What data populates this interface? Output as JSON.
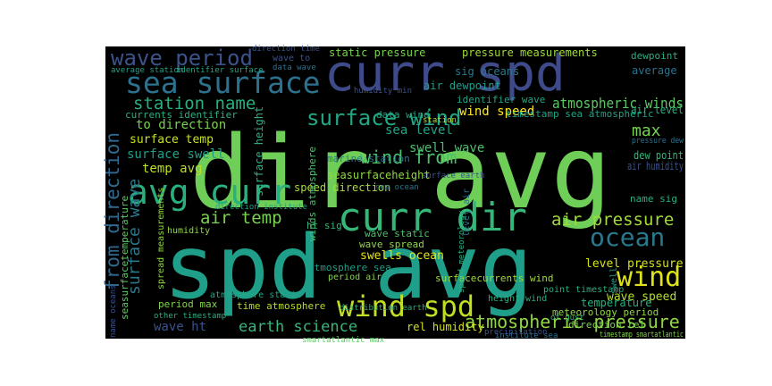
{
  "cloud": {
    "background": "#000000",
    "page_background": "#ffffff",
    "words": [
      {
        "text": "dir avg",
        "color": "#6ece58"
      },
      {
        "text": "spd avg",
        "color": "#1f9e89"
      },
      {
        "text": "curr spd",
        "color": "#3e4a89"
      },
      {
        "text": "curr dir",
        "color": "#35b779"
      },
      {
        "text": "avg curr",
        "color": "#2ab07f"
      },
      {
        "text": "sea surface",
        "color": "#2c728e"
      },
      {
        "text": "wind spd",
        "color": "#c2df23"
      },
      {
        "text": "wave period",
        "color": "#3b528b"
      },
      {
        "text": "wind",
        "color": "#dde318"
      },
      {
        "text": "ocean",
        "color": "#2a788e"
      },
      {
        "text": "air pressure",
        "color": "#a0da39"
      },
      {
        "text": "atmospheric pressure",
        "color": "#90d743"
      },
      {
        "text": "wind from",
        "color": "#4ac16d"
      },
      {
        "text": "surface wind",
        "color": "#22a785"
      },
      {
        "text": "station name",
        "color": "#2ab07f"
      },
      {
        "text": "air temp",
        "color": "#7ad151"
      },
      {
        "text": "earth science",
        "color": "#35b779"
      },
      {
        "text": "from direction",
        "color": "#31688e"
      },
      {
        "text": "surface wave",
        "color": "#2a788e"
      },
      {
        "text": "max",
        "color": "#7ad151"
      },
      {
        "text": "atmospheric winds",
        "color": "#5ec962"
      },
      {
        "text": "level pressure",
        "color": "#d5e21a"
      },
      {
        "text": "wave speed",
        "color": "#b5de2b"
      },
      {
        "text": "temp avg",
        "color": "#bddf26"
      },
      {
        "text": "sea level",
        "color": "#20a386"
      },
      {
        "text": "surface temp",
        "color": "#c8e020"
      },
      {
        "text": "wind speed",
        "color": "#fde725"
      },
      {
        "text": "swell wave",
        "color": "#4ac16d"
      },
      {
        "text": "swells ocean",
        "color": "#e5e419"
      },
      {
        "text": "dew point",
        "color": "#35b779"
      },
      {
        "text": "air humidity",
        "color": "#3b528b"
      },
      {
        "text": "air level",
        "color": "#2ab07f"
      },
      {
        "text": "average",
        "color": "#2c728e"
      },
      {
        "text": "dewpoint",
        "color": "#2ab07f"
      },
      {
        "text": "to direction",
        "color": "#7ad151"
      },
      {
        "text": "surface swell",
        "color": "#1f9e89"
      },
      {
        "text": "name sig",
        "color": "#2ab07f"
      },
      {
        "text": "rel humidity",
        "color": "#d5e21a"
      },
      {
        "text": "wave ht",
        "color": "#3b528b"
      },
      {
        "text": "period max",
        "color": "#84d44b"
      },
      {
        "text": "time atmosphere",
        "color": "#b5de2b"
      },
      {
        "text": "temperature",
        "color": "#2ab07f"
      },
      {
        "text": "meteorology period",
        "color": "#90d743"
      },
      {
        "text": "direction rel",
        "color": "#7ad151"
      },
      {
        "text": "seasurfaceheight",
        "color": "#90d743"
      },
      {
        "text": "speed direction",
        "color": "#a8db34"
      },
      {
        "text": "marine station",
        "color": "#2a788e"
      },
      {
        "text": "winds atmosphere",
        "color": "#4ac16d"
      },
      {
        "text": "data wind",
        "color": "#22a785"
      },
      {
        "text": "static pressure",
        "color": "#7ad151"
      },
      {
        "text": "pressure measurements",
        "color": "#a0da39"
      },
      {
        "text": "sig oceans",
        "color": "#2a788e"
      },
      {
        "text": "air dewpoint",
        "color": "#1f9e89"
      },
      {
        "text": "identifier wave",
        "color": "#22a785"
      },
      {
        "text": "timestamp sea atmospheric",
        "color": "#20a386"
      },
      {
        "text": "seasurfacetemperature",
        "color": "#5ec962"
      },
      {
        "text": "currents identifier",
        "color": "#2ab07f"
      },
      {
        "text": "average station",
        "color": "#20a386"
      },
      {
        "text": "identifier surface",
        "color": "#22a785"
      },
      {
        "text": "wave to",
        "color": "#3b528b"
      },
      {
        "text": "data wave",
        "color": "#2c728e"
      },
      {
        "text": "direction time",
        "color": "#3b528b"
      },
      {
        "text": "spread measurements",
        "color": "#90d743"
      },
      {
        "text": "surface height",
        "color": "#2ab07f"
      },
      {
        "text": "atmosphere sea",
        "color": "#1f9e89"
      },
      {
        "text": "wave spread",
        "color": "#90d743"
      },
      {
        "text": "period air",
        "color": "#84d44b"
      },
      {
        "text": "distribution earth",
        "color": "#2ab07f"
      },
      {
        "text": "smartatlantic max",
        "color": "#5ec962"
      },
      {
        "text": "height wind",
        "color": "#2ab07f"
      },
      {
        "text": "point timestamp",
        "color": "#2ab07f"
      },
      {
        "text": "of gust",
        "color": "#35b779"
      },
      {
        "text": "other timestamp",
        "color": "#2ab07f"
      },
      {
        "text": "atmosphere static",
        "color": "#22a785"
      },
      {
        "text": "surfacecurrents wind",
        "color": "#a0da39"
      },
      {
        "text": "level air",
        "color": "#2c728e"
      },
      {
        "text": "speed meteorology",
        "color": "#2ab07f"
      },
      {
        "text": "institute sea",
        "color": "#2c728e"
      },
      {
        "text": "timestamp smartatlantic",
        "color": "#84d44b"
      },
      {
        "text": "ht sig",
        "color": "#35b779"
      },
      {
        "text": "wave static",
        "color": "#4ac16d"
      },
      {
        "text": "direction institute",
        "color": "#20a386"
      },
      {
        "text": "humidity",
        "color": "#90d743"
      },
      {
        "text": "name oceans",
        "color": "#3b528b"
      },
      {
        "text": "swell",
        "color": "#1f9e89"
      },
      {
        "text": "station",
        "color": "#b5de2b"
      },
      {
        "text": "humidity min",
        "color": "#3b528b"
      },
      {
        "text": "sea ocean",
        "color": "#2c728e"
      },
      {
        "text": "pressure dew",
        "color": "#2c728e"
      },
      {
        "text": "surface earth",
        "color": "#3b528b"
      },
      {
        "text": "precipitation",
        "color": "#3b528b"
      }
    ]
  }
}
